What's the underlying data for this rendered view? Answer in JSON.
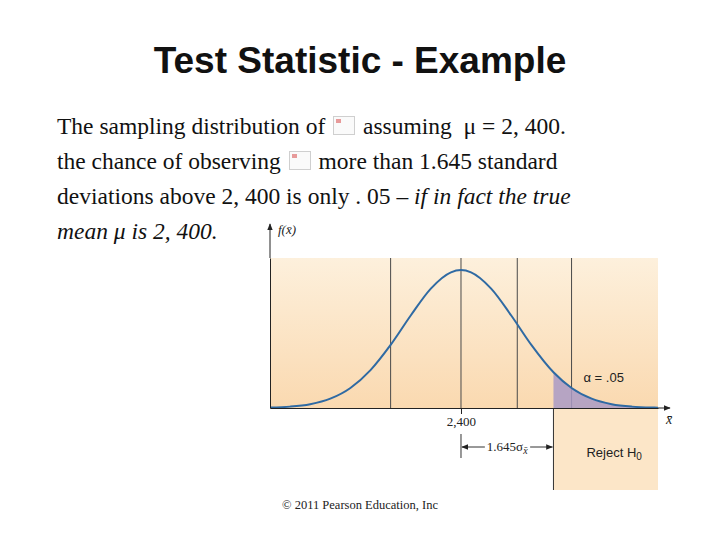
{
  "chart_data": {
    "type": "area",
    "title": "Test Statistic - Example",
    "body_lines": [
      [
        "The sampling distribution of ",
        null,
        " assuming  μ = 2, 400."
      ],
      [
        "the chance of observing ",
        null,
        " more than 1.645 standard"
      ],
      [
        "deviations above 2, 400 is only . 05 – ",
        {
          "italic": "if in fact the true"
        }
      ],
      [
        {
          "italic": "mean μ is 2, 400."
        }
      ]
    ],
    "x": [
      2305,
      2315,
      2325,
      2335,
      2345,
      2355,
      2365,
      2375,
      2385,
      2395,
      2400,
      2405,
      2415,
      2425,
      2435,
      2446,
      2455,
      2465,
      2475,
      2485,
      2495,
      2498
    ],
    "values": [
      4.5e-05,
      0.000142,
      0.000394,
      0.000963,
      0.00207,
      0.00392,
      0.00652,
      0.00956,
      0.01234,
      0.01402,
      0.01425,
      0.01402,
      0.01234,
      0.00956,
      0.00652,
      0.00369,
      0.00207,
      0.000963,
      0.000394,
      0.000142,
      4.5e-05,
      3.1e-05
    ],
    "xlim": [
      2305,
      2498
    ],
    "ylim": [
      0,
      0.0155
    ],
    "xticks": [
      {
        "value": 2400,
        "label": "2,400"
      }
    ],
    "tick_labels": "x",
    "x_label": "x̄",
    "y_label": "f(x̄)",
    "critical_value": 2446,
    "reference_lines": [
      2365,
      2400,
      2428,
      2455
    ],
    "alpha_label": "α = .05",
    "interval_label": "1.645σ",
    "interval_label_sub": "x̄",
    "reject_label": "Reject H",
    "reject_label_sub": "0",
    "footer": "© 2011 Pearson Education, Inc"
  }
}
